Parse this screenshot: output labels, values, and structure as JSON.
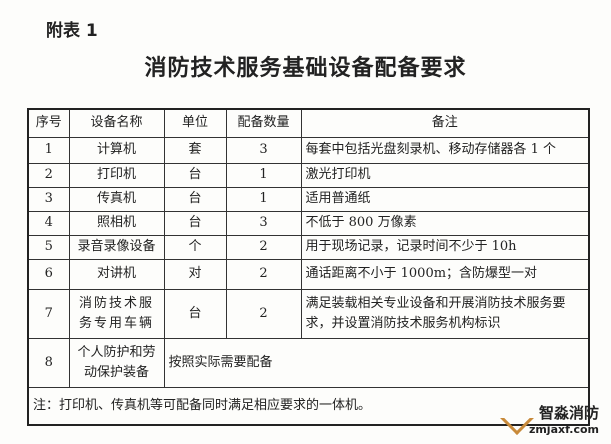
{
  "annex_label": "附表 1",
  "title": "消防技术服务基础设备配备要求",
  "table": {
    "headers": [
      "序号",
      "设备名称",
      "单位",
      "配备数量",
      "备注"
    ],
    "rows": [
      [
        "1",
        "计算机",
        "套",
        "3",
        "每套中包括光盘刻录机、移动存储器各 1 个"
      ],
      [
        "2",
        "打印机",
        "台",
        "1",
        "激光打印机"
      ],
      [
        "3",
        "传真机",
        "台",
        "1",
        "适用普通纸"
      ],
      [
        "4",
        "照相机",
        "台",
        "3",
        "不低于 800 万像素"
      ],
      [
        "5",
        "录音录像设备",
        "个",
        "2",
        "用于现场记录，记录时间不少于 10h"
      ],
      [
        "6",
        "对讲机",
        "对",
        "2",
        "通话距离不小于 1000m；含防爆型一对"
      ],
      [
        "7",
        "消防技术服务专用车辆",
        "台",
        "2",
        "满足装载相关专业设备和开展消防技术服务要求，并设置消防技术服务机构标识"
      ]
    ],
    "row8": {
      "no": "8",
      "name": "个人防护和劳动保护装备",
      "remark": "按照实际需要配备"
    },
    "note": "注：打印机、传真机等可配备同时满足相应要求的一体机。"
  },
  "watermark": {
    "name": "智淼消防",
    "site": "zmjaxf.com"
  }
}
